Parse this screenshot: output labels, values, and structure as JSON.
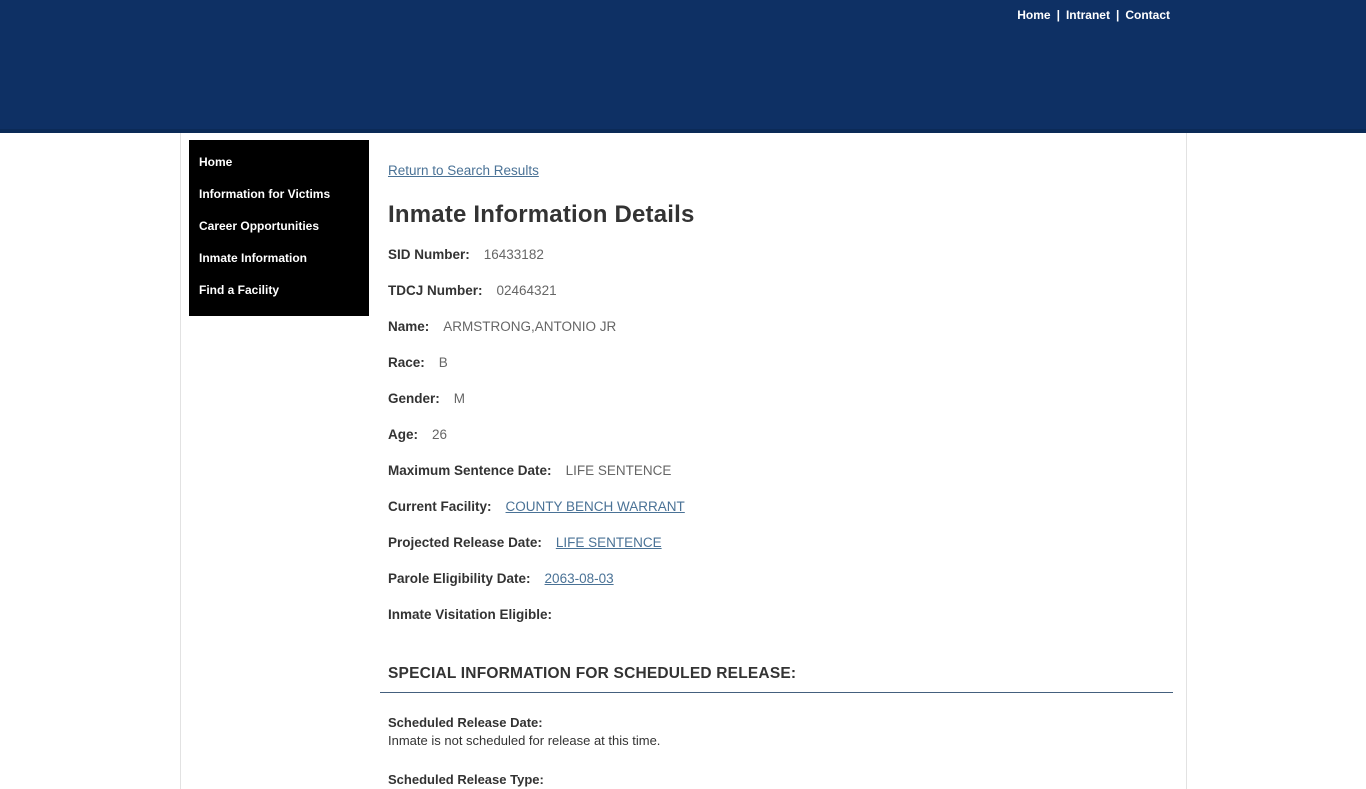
{
  "top_nav": {
    "separator": "|",
    "links": [
      {
        "label": "Home"
      },
      {
        "label": "Intranet"
      },
      {
        "label": "Contact"
      }
    ]
  },
  "sidebar": {
    "items": [
      {
        "label": "Home"
      },
      {
        "label": "Information for Victims"
      },
      {
        "label": "Career Opportunities"
      },
      {
        "label": "Inmate Information"
      },
      {
        "label": "Find a Facility"
      }
    ]
  },
  "main": {
    "back_link": "Return to Search Results",
    "title": "Inmate Information Details",
    "fields": [
      {
        "label": "SID Number:",
        "value": "16433182",
        "link": false
      },
      {
        "label": "TDCJ Number:",
        "value": "02464321",
        "link": false
      },
      {
        "label": "Name:",
        "value": "ARMSTRONG,ANTONIO JR",
        "link": false
      },
      {
        "label": "Race:",
        "value": "B",
        "link": false
      },
      {
        "label": "Gender:",
        "value": "M",
        "link": false
      },
      {
        "label": "Age:",
        "value": "26",
        "link": false
      },
      {
        "label": "Maximum Sentence Date:",
        "value": "LIFE SENTENCE",
        "link": false
      },
      {
        "label": "Current Facility:",
        "value": "COUNTY BENCH WARRANT",
        "link": true
      },
      {
        "label": "Projected Release Date:",
        "value": "LIFE SENTENCE",
        "link": true
      },
      {
        "label": "Parole Eligibility Date:",
        "value": "2063-08-03",
        "link": true
      },
      {
        "label": "Inmate Visitation Eligible:",
        "value": "",
        "link": false
      }
    ],
    "special_section": {
      "heading": "SPECIAL INFORMATION FOR SCHEDULED RELEASE:",
      "items": [
        {
          "label": "Scheduled Release Date:",
          "text": "Inmate is not scheduled for release at this time."
        },
        {
          "label": "Scheduled Release Type:",
          "text": ""
        }
      ]
    }
  },
  "colors": {
    "header_bg": "#0e3064",
    "sidebar_bg": "#000000",
    "link_color": "#4a7296",
    "label_color": "#333333",
    "value_color": "#666666",
    "rule_color": "#44607e"
  }
}
